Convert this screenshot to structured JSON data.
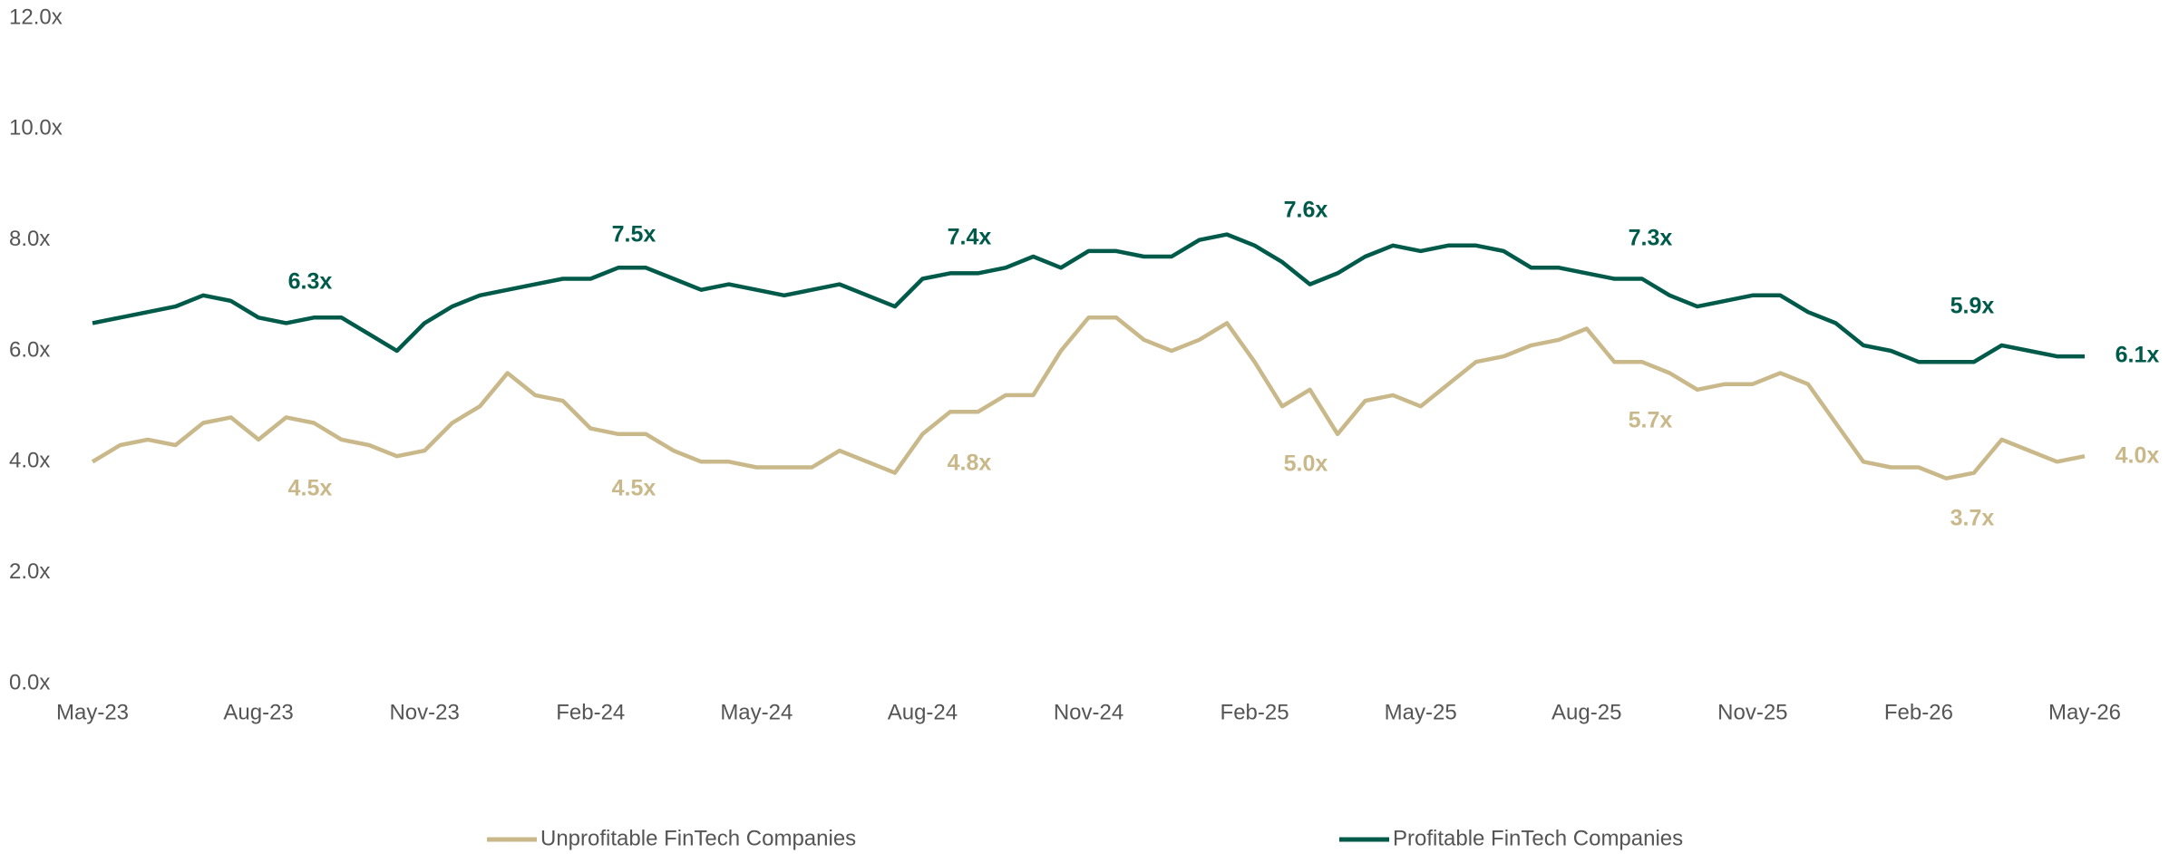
{
  "chart_data": {
    "type": "line",
    "categories": [
      "May-23",
      null,
      null,
      null,
      null,
      null,
      "Aug-23",
      null,
      null,
      null,
      null,
      null,
      "Nov-23",
      null,
      null,
      null,
      null,
      null,
      "Feb-24",
      null,
      null,
      null,
      null,
      null,
      "May-24",
      null,
      null,
      null,
      null,
      null,
      "Aug-24",
      null,
      null,
      null,
      null,
      null,
      "Nov-24",
      null,
      null,
      null,
      null,
      null,
      "Feb-25",
      null,
      null,
      null,
      null,
      null,
      "May-25",
      null,
      null,
      null,
      null,
      null,
      "Aug-25",
      null,
      null,
      null,
      null,
      null,
      "Nov-25",
      null,
      null,
      null,
      null,
      null,
      "Feb-26",
      null,
      null,
      null,
      null,
      null,
      "May-26"
    ],
    "series": [
      {
        "name": "Unprofitable FinTech Companies",
        "color": "#c9b88a",
        "values": [
          4.0,
          4.3,
          4.4,
          4.3,
          4.7,
          4.8,
          4.4,
          4.8,
          4.7,
          4.4,
          4.3,
          4.1,
          4.2,
          4.7,
          5.0,
          5.6,
          5.2,
          5.1,
          4.6,
          4.5,
          4.5,
          4.2,
          4.0,
          4.0,
          3.9,
          3.9,
          3.9,
          4.2,
          4.0,
          3.8,
          4.5,
          4.9,
          4.9,
          5.2,
          5.2,
          6.0,
          6.6,
          6.6,
          6.2,
          6.0,
          6.2,
          6.5,
          5.8,
          5.0,
          5.3,
          4.5,
          5.1,
          5.2,
          5.0,
          5.4,
          5.8,
          5.9,
          6.1,
          6.2,
          6.4,
          5.8,
          5.8,
          5.6,
          5.3,
          5.4,
          5.4,
          5.6,
          5.4,
          4.7,
          4.0,
          3.9,
          3.9,
          3.7,
          3.8,
          4.4,
          4.2,
          4.0,
          4.1
        ]
      },
      {
        "name": "Profitable FinTech Companies",
        "color": "#005a4a",
        "values": [
          6.5,
          6.6,
          6.7,
          6.8,
          7.0,
          6.9,
          6.6,
          6.5,
          6.6,
          6.6,
          6.3,
          6.0,
          6.5,
          6.8,
          7.0,
          7.1,
          7.2,
          7.3,
          7.3,
          7.5,
          7.5,
          7.3,
          7.1,
          7.2,
          7.1,
          7.0,
          7.1,
          7.2,
          7.0,
          6.8,
          7.3,
          7.4,
          7.4,
          7.5,
          7.7,
          7.5,
          7.8,
          7.8,
          7.7,
          7.7,
          8.0,
          8.1,
          7.9,
          7.6,
          7.2,
          7.4,
          7.7,
          7.9,
          7.8,
          7.9,
          7.9,
          7.8,
          7.5,
          7.5,
          7.4,
          7.3,
          7.3,
          7.0,
          6.8,
          6.9,
          7.0,
          7.0,
          6.7,
          6.5,
          6.1,
          6.0,
          5.8,
          5.8,
          5.8,
          6.1,
          6.0,
          5.9,
          5.9
        ]
      }
    ],
    "annotations": [
      {
        "text": "6.3x",
        "series": 1
      },
      {
        "text": "7.5x",
        "series": 1
      },
      {
        "text": "7.4x",
        "series": 1
      },
      {
        "text": "7.6x",
        "series": 1
      },
      {
        "text": "7.3x",
        "series": 1
      },
      {
        "text": "5.9x",
        "series": 1
      },
      {
        "text": "6.1x",
        "series": 1
      },
      {
        "text": "4.5x",
        "series": 0
      },
      {
        "text": "4.5x",
        "series": 0
      },
      {
        "text": "4.8x",
        "series": 0
      },
      {
        "text": "5.0x",
        "series": 0
      },
      {
        "text": "5.7x",
        "series": 0
      },
      {
        "text": "3.7x",
        "series": 0
      },
      {
        "text": "4.0x",
        "series": 0
      }
    ],
    "ylim": [
      0,
      12
    ],
    "yticks": [
      {
        "value": 0,
        "label": "0.0x"
      },
      {
        "value": 2,
        "label": "2.0x"
      },
      {
        "value": 4,
        "label": "4.0x"
      },
      {
        "value": 6,
        "label": "6.0x"
      },
      {
        "value": 8,
        "label": "8.0x"
      },
      {
        "value": 10,
        "label": "10.0x"
      },
      {
        "value": 12,
        "label": "12.0x"
      }
    ],
    "grid": false,
    "legend": "bottom"
  }
}
